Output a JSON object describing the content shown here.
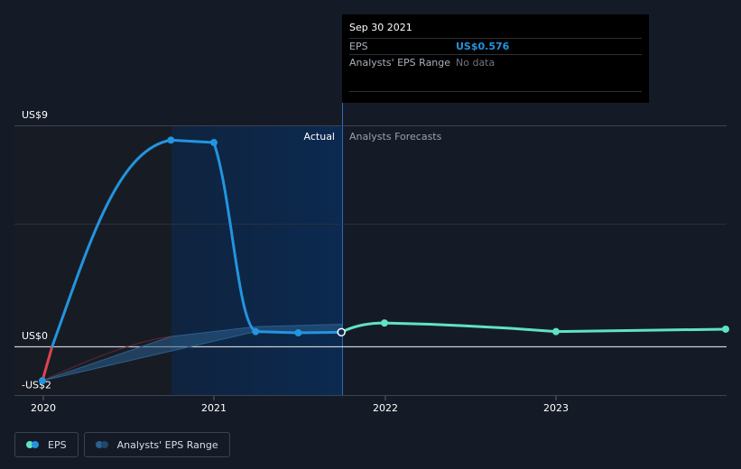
{
  "tooltip": {
    "date": "Sep 30 2021",
    "rows": [
      {
        "label": "EPS",
        "value": "US$0.576"
      },
      {
        "label": "Analysts' EPS Range",
        "value": "No data"
      }
    ]
  },
  "legend": {
    "eps_label": "EPS",
    "range_label": "Analysts' EPS Range"
  },
  "colors": {
    "background": "#151b26",
    "eps_actual": "#2394df",
    "eps_negative": "#e0424f",
    "forecast": "#5fe3c5",
    "actual_region": "#0b2a52",
    "range_band": "#2c5f8c"
  },
  "chart_data": {
    "type": "line",
    "title": "",
    "xlabel": "",
    "ylabel": "",
    "x_ticks": [
      "2020",
      "2021",
      "2022",
      "2023"
    ],
    "y_ticks": [
      "US$9",
      "US$0",
      "-US$2"
    ],
    "ylim": [
      -2,
      9
    ],
    "region_labels": {
      "actual": "Actual",
      "forecast": "Analysts Forecasts"
    },
    "series": [
      {
        "name": "EPS",
        "points": [
          {
            "x": "2019-12-31",
            "y": -1.4
          },
          {
            "x": "2020-09-30",
            "y": 8.4
          },
          {
            "x": "2020-12-31",
            "y": 8.3
          },
          {
            "x": "2021-03-31",
            "y": 0.6
          },
          {
            "x": "2021-06-30",
            "y": 0.55
          },
          {
            "x": "2021-09-30",
            "y": 0.576
          }
        ]
      },
      {
        "name": "Analysts Forecasts",
        "points": [
          {
            "x": "2021-09-30",
            "y": 0.576
          },
          {
            "x": "2021-12-31",
            "y": 0.95
          },
          {
            "x": "2022-12-31",
            "y": 0.6
          },
          {
            "x": "2023-12-31",
            "y": 0.7
          }
        ]
      },
      {
        "name": "Analysts' EPS Range",
        "points": [
          {
            "x": "2019-12-31",
            "y": -1.4
          },
          {
            "x": "2020-09-30",
            "y": 0.4
          },
          {
            "x": "2021-03-31",
            "y": 0.8
          },
          {
            "x": "2021-09-30",
            "y": 0.9
          }
        ]
      }
    ]
  }
}
